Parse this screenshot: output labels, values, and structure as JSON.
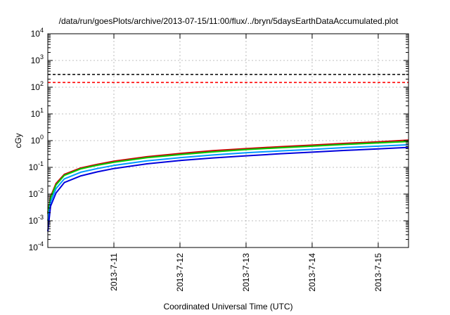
{
  "chart_data": {
    "type": "line",
    "title": "/data/run/goesPlots/archive/2013-07-15/11:00/flux/../bryn/5daysEarthDataAccumulated.plot",
    "xlabel": "Coordinated Universal Time (UTC)",
    "ylabel": "cGy",
    "y_scale": "log",
    "ylim": [
      0.0001,
      10000
    ],
    "xlim": [
      "2013-07-10 00:00",
      "2013-07-15 11:00"
    ],
    "x_ticks": [
      "2013-7-11",
      "2013-7-12",
      "2013-7-13",
      "2013-7-14",
      "2013-7-15"
    ],
    "y_ticks": [
      {
        "value": 0.0001,
        "base": "10",
        "exp": "-4"
      },
      {
        "value": 0.001,
        "base": "10",
        "exp": "-3"
      },
      {
        "value": 0.01,
        "base": "10",
        "exp": "-2"
      },
      {
        "value": 0.1,
        "base": "10",
        "exp": "-1"
      },
      {
        "value": 1,
        "base": "10",
        "exp": "0"
      },
      {
        "value": 10,
        "base": "10",
        "exp": "1"
      },
      {
        "value": 100,
        "base": "10",
        "exp": "2"
      },
      {
        "value": 1000,
        "base": "10",
        "exp": "3"
      },
      {
        "value": 10000,
        "base": "10",
        "exp": "4"
      }
    ],
    "grid": true,
    "thresholds": [
      {
        "value": 300,
        "color": "#000000",
        "style": "dashed"
      },
      {
        "value": 150,
        "color": "#ff0000",
        "style": "dashed"
      }
    ],
    "series": [
      {
        "color": "#cc0000",
        "x": [
          "2013-07-10 00:00",
          "2013-07-10 01:00",
          "2013-07-10 03:00",
          "2013-07-10 06:00",
          "2013-07-10 12:00",
          "2013-07-10 18:00",
          "2013-07-11 00:00",
          "2013-07-11 12:00",
          "2013-07-12 00:00",
          "2013-07-12 12:00",
          "2013-07-13 00:00",
          "2013-07-13 12:00",
          "2013-07-14 00:00",
          "2013-07-14 12:00",
          "2013-07-15 00:00",
          "2013-07-15 11:00"
        ],
        "values": [
          0.002,
          0.008,
          0.025,
          0.055,
          0.095,
          0.13,
          0.17,
          0.25,
          0.33,
          0.42,
          0.5,
          0.59,
          0.68,
          0.79,
          0.9,
          1.05
        ]
      },
      {
        "color": "#00cc00",
        "x": [
          "2013-07-10 00:00",
          "2013-07-10 01:00",
          "2013-07-10 03:00",
          "2013-07-10 06:00",
          "2013-07-10 12:00",
          "2013-07-10 18:00",
          "2013-07-11 00:00",
          "2013-07-11 12:00",
          "2013-07-12 00:00",
          "2013-07-12 12:00",
          "2013-07-13 00:00",
          "2013-07-13 12:00",
          "2013-07-14 00:00",
          "2013-07-14 12:00",
          "2013-07-15 00:00",
          "2013-07-15 11:00"
        ],
        "values": [
          0.0018,
          0.007,
          0.022,
          0.05,
          0.088,
          0.12,
          0.155,
          0.23,
          0.3,
          0.38,
          0.46,
          0.54,
          0.62,
          0.72,
          0.82,
          0.93
        ]
      },
      {
        "color": "#0099ff",
        "x": [
          "2013-07-10 00:00",
          "2013-07-10 01:00",
          "2013-07-10 03:00",
          "2013-07-10 06:00",
          "2013-07-10 12:00",
          "2013-07-10 18:00",
          "2013-07-11 00:00",
          "2013-07-11 12:00",
          "2013-07-12 00:00",
          "2013-07-12 12:00",
          "2013-07-13 00:00",
          "2013-07-13 12:00",
          "2013-07-14 00:00",
          "2013-07-14 12:00",
          "2013-07-15 00:00",
          "2013-07-15 11:00"
        ],
        "values": [
          0.001,
          0.005,
          0.016,
          0.037,
          0.066,
          0.09,
          0.118,
          0.175,
          0.23,
          0.29,
          0.35,
          0.41,
          0.47,
          0.55,
          0.62,
          0.7
        ]
      },
      {
        "color": "#0000dd",
        "x": [
          "2013-07-10 00:00",
          "2013-07-10 01:00",
          "2013-07-10 03:00",
          "2013-07-10 06:00",
          "2013-07-10 12:00",
          "2013-07-10 18:00",
          "2013-07-11 00:00",
          "2013-07-11 12:00",
          "2013-07-12 00:00",
          "2013-07-12 12:00",
          "2013-07-13 00:00",
          "2013-07-13 12:00",
          "2013-07-14 00:00",
          "2013-07-14 12:00",
          "2013-07-15 00:00",
          "2013-07-15 11:00"
        ],
        "values": [
          0.0004,
          0.0035,
          0.011,
          0.027,
          0.048,
          0.068,
          0.09,
          0.135,
          0.18,
          0.225,
          0.27,
          0.32,
          0.37,
          0.43,
          0.49,
          0.56
        ]
      }
    ]
  }
}
